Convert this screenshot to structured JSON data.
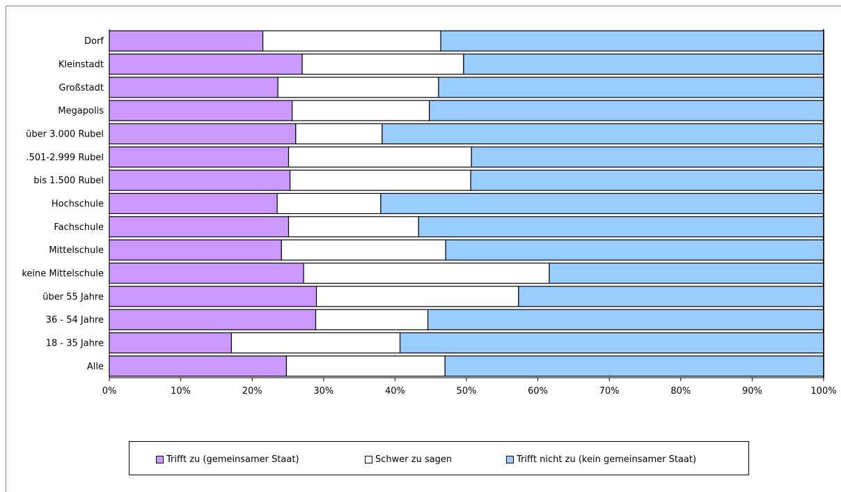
{
  "chart_data": {
    "type": "bar",
    "orientation": "horizontal",
    "stacked": "percent",
    "categories": [
      "Dorf",
      "Kleinstadt",
      "Großstadt",
      "Megapolis",
      "über 3.000 Rubel",
      ".501-2.999 Rubel",
      "bis 1.500 Rubel",
      "Hochschule",
      "Fachschule",
      "Mittelschule",
      "keine Mittelschule",
      "über 55 Jahre",
      "36 - 54 Jahre",
      "18 - 35 Jahre",
      "Alle"
    ],
    "series": [
      {
        "name": "Trifft zu (gemeinsamer Staat)",
        "color": "#cc99ff",
        "values": [
          21.5,
          27.0,
          23.6,
          25.6,
          26.1,
          25.1,
          25.3,
          23.5,
          25.1,
          24.1,
          27.2,
          29.0,
          28.9,
          17.1,
          24.8
        ]
      },
      {
        "name": "Schwer zu sagen",
        "color": "#ffffff",
        "values": [
          24.9,
          22.6,
          22.5,
          19.2,
          12.1,
          25.6,
          25.3,
          14.5,
          18.2,
          23.0,
          34.4,
          28.3,
          15.7,
          23.6,
          22.2
        ]
      },
      {
        "name": "Trifft nicht zu (kein gemeinsamer Staat)",
        "color": "#99ccff",
        "values": [
          53.6,
          50.4,
          53.9,
          55.2,
          61.8,
          49.3,
          49.4,
          62.0,
          56.7,
          52.9,
          38.4,
          42.7,
          55.4,
          59.3,
          53.0
        ]
      }
    ],
    "x_ticks": [
      "0%",
      "10%",
      "20%",
      "30%",
      "40%",
      "50%",
      "60%",
      "70%",
      "80%",
      "90%",
      "100%"
    ],
    "xlim": [
      0,
      100
    ],
    "grid": false,
    "legend_position": "bottom"
  }
}
